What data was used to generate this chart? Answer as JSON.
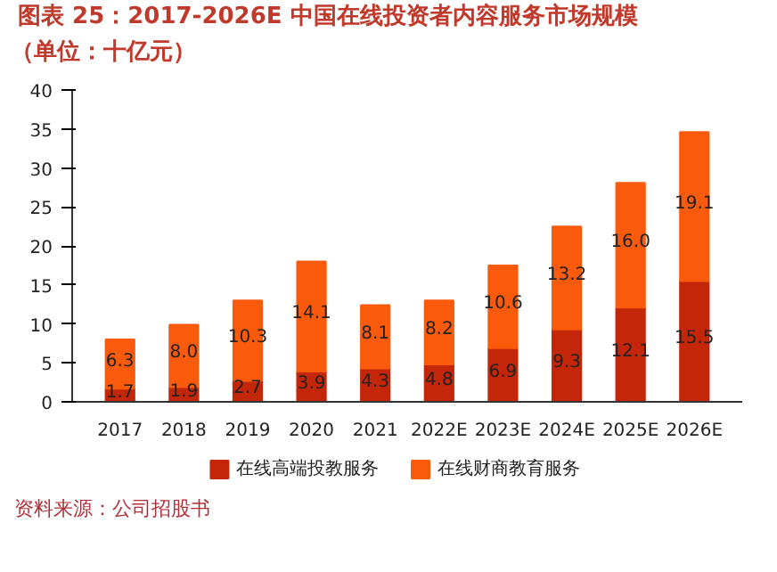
{
  "chart_data": {
    "type": "bar",
    "stacked": true,
    "title": "图表 25：2017-2026E 中国在线投资者内容服务市场规模",
    "subtitle": "（单位：十亿元）",
    "categories": [
      "2017",
      "2018",
      "2019",
      "2020",
      "2021",
      "2022E",
      "2023E",
      "2024E",
      "2025E",
      "2026E"
    ],
    "series": [
      {
        "name": "在线高端投教服务",
        "color": "#c4260a",
        "values": [
          1.7,
          1.9,
          2.7,
          3.9,
          4.3,
          4.8,
          6.9,
          9.3,
          12.1,
          15.5
        ],
        "value_labels": [
          "1.7",
          "1.9",
          "2.7",
          "3.9",
          "4.3",
          "4.8",
          "6.9",
          "9.3",
          "12.1",
          "15.5"
        ]
      },
      {
        "name": "在线财商教育服务",
        "color": "#fa5a0c",
        "values": [
          6.3,
          8.0,
          10.3,
          14.1,
          8.1,
          8.2,
          10.6,
          13.2,
          16.0,
          19.1
        ],
        "value_labels": [
          "6.3",
          "8.0",
          "10.3",
          "14.1",
          "8.1",
          "8.2",
          "10.6",
          "13.2",
          "16.0",
          "19.1"
        ]
      }
    ],
    "ylim": [
      0,
      40
    ],
    "yticks": [
      0,
      5,
      10,
      15,
      20,
      25,
      30,
      35,
      40
    ],
    "grid": false,
    "legend": "bottom",
    "annotations": [
      "资料来源：公司招股书"
    ]
  }
}
